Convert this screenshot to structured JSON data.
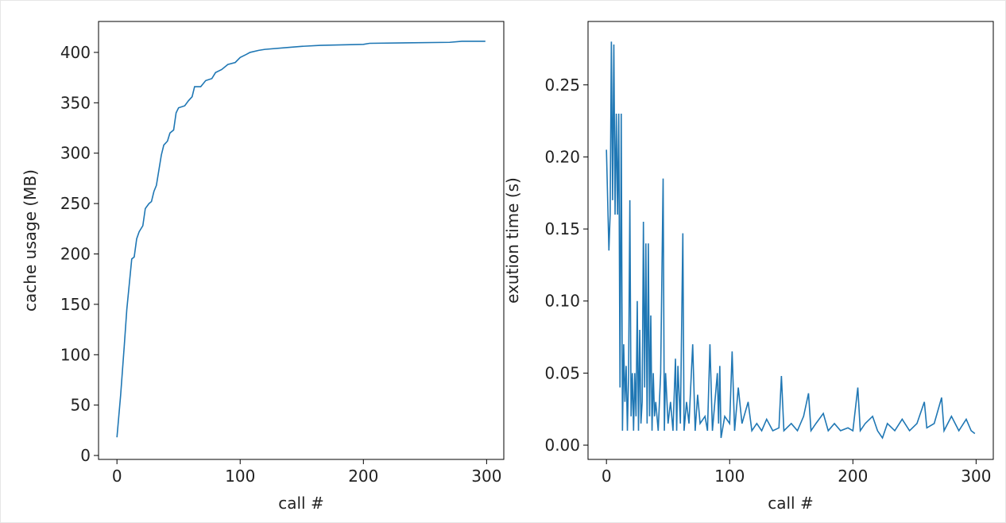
{
  "chart_data": [
    {
      "type": "line",
      "xlabel": "call #",
      "ylabel": "cache usage (MB)",
      "xlim": [
        -14.95,
        313.95
      ],
      "ylim": [
        -3.9,
        430.7
      ],
      "xticks": [
        0,
        100,
        200,
        300
      ],
      "yticks": [
        0,
        50,
        100,
        150,
        200,
        250,
        300,
        350,
        400
      ],
      "series": [
        {
          "color": "#1f77b4",
          "x": [
            0,
            3,
            6,
            8,
            10,
            12,
            14,
            16,
            18,
            21,
            23,
            26,
            28,
            30,
            32,
            34,
            36,
            38,
            41,
            43,
            46,
            48,
            50,
            55,
            58,
            61,
            63,
            68,
            72,
            77,
            80,
            85,
            90,
            96,
            100,
            105,
            108,
            115,
            120,
            140,
            150,
            165,
            200,
            205,
            270,
            280,
            299
          ],
          "values": [
            18,
            60,
            110,
            145,
            170,
            195,
            197,
            215,
            222,
            228,
            245,
            250,
            252,
            262,
            268,
            283,
            298,
            308,
            312,
            320,
            323,
            340,
            345,
            347,
            352,
            356,
            366,
            366,
            372,
            374,
            380,
            383,
            388,
            390,
            395,
            398,
            400,
            402,
            403,
            405,
            406,
            407,
            408,
            409,
            410,
            411,
            411
          ]
        }
      ]
    },
    {
      "type": "line",
      "xlabel": "call #",
      "ylabel": "exution time (s)",
      "xlim": [
        -14.95,
        313.95
      ],
      "ylim": [
        -0.0099,
        0.294
      ],
      "xticks": [
        0,
        100,
        200,
        300
      ],
      "yticks": [
        {
          "value": 0,
          "label": "0.00"
        },
        0.05,
        {
          "value": 0.1,
          "label": "0.10"
        },
        0.15,
        {
          "value": 0.2,
          "label": "0.20"
        },
        0.25
      ],
      "series": [
        {
          "color": "#1f77b4",
          "x": [
            0,
            2,
            3,
            4,
            5,
            6,
            7,
            8,
            9,
            10,
            11,
            12,
            13,
            14,
            15,
            16,
            17,
            18,
            19,
            20,
            21,
            22,
            23,
            24,
            25,
            26,
            27,
            28,
            29,
            30,
            31,
            32,
            33,
            34,
            35,
            36,
            37,
            38,
            39,
            40,
            42,
            44,
            46,
            47,
            48,
            50,
            52,
            54,
            56,
            57,
            58,
            60,
            62,
            63,
            65,
            67,
            70,
            72,
            74,
            76,
            80,
            82,
            84,
            86,
            90,
            91,
            92,
            93,
            96,
            100,
            102,
            104,
            107,
            110,
            115,
            118,
            122,
            126,
            130,
            135,
            140,
            142,
            144,
            150,
            155,
            160,
            164,
            166,
            170,
            176,
            180,
            185,
            190,
            196,
            200,
            204,
            206,
            210,
            216,
            220,
            224,
            228,
            234,
            240,
            246,
            252,
            258,
            260,
            266,
            272,
            274,
            280,
            286,
            292,
            296,
            299
          ],
          "values": [
            0.205,
            0.135,
            0.16,
            0.28,
            0.17,
            0.278,
            0.16,
            0.23,
            0.16,
            0.23,
            0.04,
            0.23,
            0.01,
            0.07,
            0.03,
            0.055,
            0.01,
            0.05,
            0.17,
            0.02,
            0.05,
            0.01,
            0.05,
            0.02,
            0.1,
            0.01,
            0.08,
            0.015,
            0.03,
            0.155,
            0.04,
            0.14,
            0.015,
            0.14,
            0.02,
            0.09,
            0.01,
            0.05,
            0.02,
            0.03,
            0.01,
            0.05,
            0.185,
            0.01,
            0.05,
            0.015,
            0.03,
            0.01,
            0.06,
            0.01,
            0.055,
            0.015,
            0.147,
            0.01,
            0.03,
            0.015,
            0.07,
            0.01,
            0.035,
            0.015,
            0.02,
            0.01,
            0.07,
            0.01,
            0.05,
            0.015,
            0.055,
            0.005,
            0.02,
            0.015,
            0.065,
            0.01,
            0.04,
            0.015,
            0.03,
            0.01,
            0.015,
            0.01,
            0.018,
            0.01,
            0.012,
            0.048,
            0.01,
            0.015,
            0.01,
            0.02,
            0.036,
            0.01,
            0.015,
            0.022,
            0.01,
            0.015,
            0.01,
            0.012,
            0.01,
            0.04,
            0.01,
            0.015,
            0.02,
            0.01,
            0.005,
            0.015,
            0.01,
            0.018,
            0.01,
            0.015,
            0.03,
            0.012,
            0.015,
            0.033,
            0.01,
            0.02,
            0.01,
            0.018,
            0.01,
            0.008
          ]
        }
      ]
    }
  ]
}
